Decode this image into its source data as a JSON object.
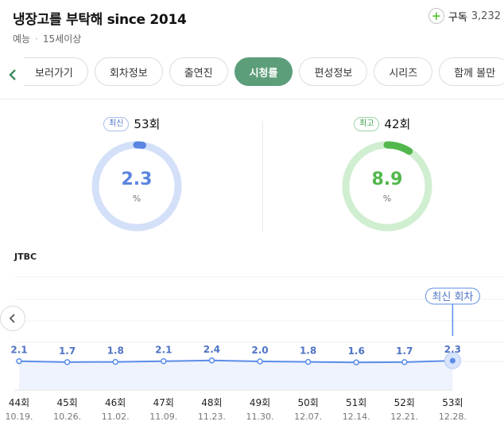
{
  "header": {
    "title": "냉장고를 부탁해 since 2014",
    "genre": "예능",
    "age_rating": "15세이상",
    "subscribe_label": "구독",
    "subscriber_count": "3,232"
  },
  "tabs": [
    {
      "label": "보러가기"
    },
    {
      "label": "회차정보"
    },
    {
      "label": "출연진"
    },
    {
      "label": "시청률",
      "active": true
    },
    {
      "label": "편성정보"
    },
    {
      "label": "시리즈"
    },
    {
      "label": "함께 볼만"
    }
  ],
  "stats": {
    "latest": {
      "badge": "최신",
      "episode": "53회",
      "value": "2.3",
      "unit": "%",
      "color": "#5b85e0",
      "track": "#d3e0f8",
      "fraction": 0.023
    },
    "highest": {
      "badge": "최고",
      "episode": "42회",
      "value": "8.9",
      "unit": "%",
      "color": "#52b74c",
      "track": "#d0eed0",
      "fraction": 0.089
    }
  },
  "network": "JTBC",
  "callout": "최신 회차",
  "chart_data": {
    "type": "line",
    "x": [
      "44회",
      "45회",
      "46회",
      "47회",
      "48회",
      "49회",
      "50회",
      "51회",
      "52회",
      "53회"
    ],
    "dates": [
      "10.19.",
      "10.26.",
      "11.02.",
      "11.09.",
      "11.23.",
      "11.30.",
      "12.07.",
      "12.14.",
      "12.21.",
      "12.28."
    ],
    "series": [
      {
        "values": [
          2.1,
          1.7,
          1.8,
          2.1,
          2.4,
          2.0,
          1.8,
          1.6,
          1.7,
          2.3
        ]
      }
    ],
    "value_labels": [
      "2.1",
      "1.7",
      "1.8",
      "2.1",
      "2.4",
      "2.0",
      "1.8",
      "1.6",
      "1.7",
      "2.3"
    ],
    "highlight_index": 9,
    "line_color": "#5b8de8",
    "fill_color": "#eef3fd",
    "grid": true
  }
}
